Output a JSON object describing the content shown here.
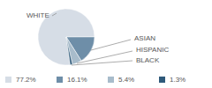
{
  "chart_data": {
    "type": "pie",
    "categories": [
      "WHITE",
      "ASIAN",
      "HISPANIC",
      "BLACK"
    ],
    "values": [
      77.2,
      16.1,
      5.4,
      1.3
    ],
    "value_labels": [
      "77.2%",
      "16.1%",
      "5.4%",
      "1.3%"
    ],
    "colors": [
      "#d6dde6",
      "#6e8ea8",
      "#a8bccb",
      "#2f5a7a"
    ],
    "legend": "bottom"
  }
}
